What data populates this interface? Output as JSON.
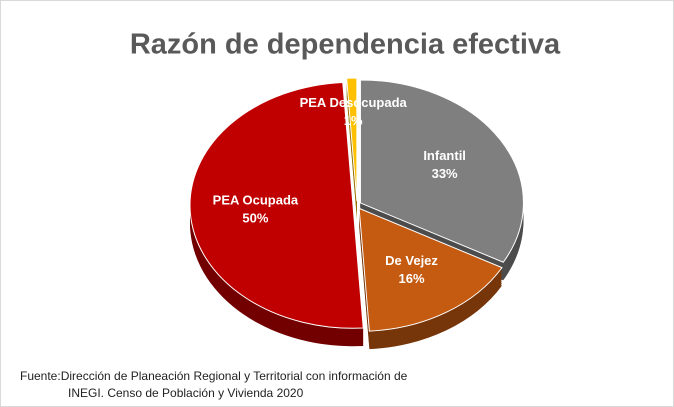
{
  "chart_data": {
    "type": "pie",
    "title": "Razón de dependencia efectiva",
    "categories": [
      "Infantil",
      "De Vejez",
      "PEA Ocupada",
      "PEA Desocupada"
    ],
    "values": [
      33,
      16,
      50,
      1
    ],
    "value_labels": [
      "33%",
      "16%",
      "50%",
      "1%"
    ],
    "colors": [
      "#7f7f7f",
      "#c55a11",
      "#c00000",
      "#ffc000"
    ],
    "source": [
      "Fuente:Dirección de Planeación Regional y Territorial con información de",
      "INEGI. Censo de Población y Vivienda 2020"
    ]
  }
}
